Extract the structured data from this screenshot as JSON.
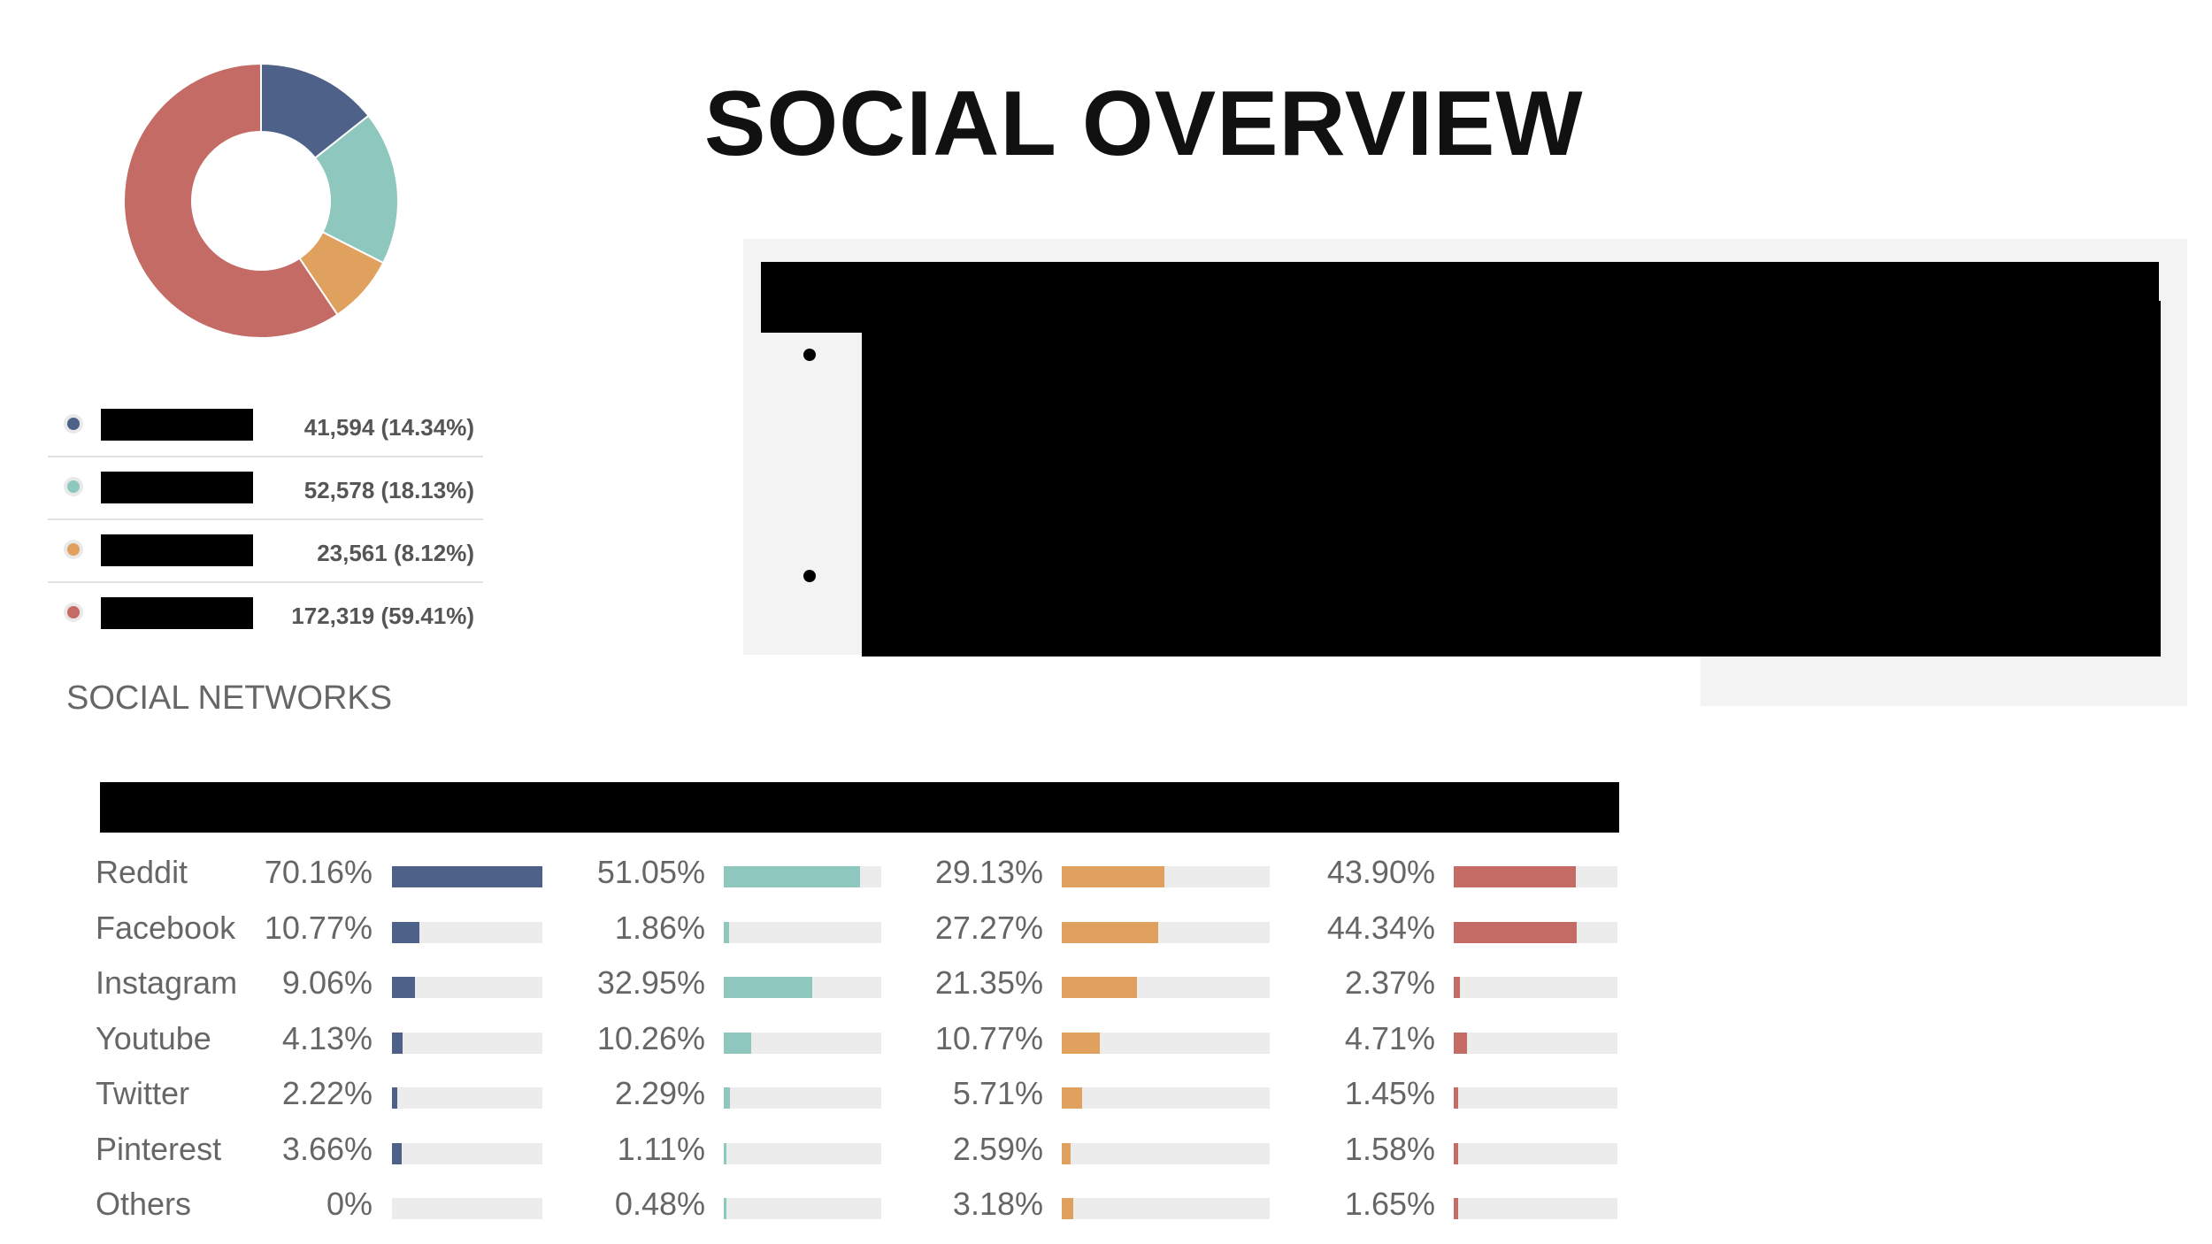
{
  "title": "SOCIAL OVERVIEW",
  "section_label": "SOCIAL NETWORKS",
  "colors": [
    "#4e6189",
    "#8ec7bd",
    "#e0a05e",
    "#c46b65"
  ],
  "legend": [
    {
      "value": "41,594 (14.34%)"
    },
    {
      "value": "52,578 (18.13%)"
    },
    {
      "value": "23,561 (8.12%)"
    },
    {
      "value": "172,319 (59.41%)"
    }
  ],
  "chart_data": [
    {
      "type": "pie",
      "values": [
        41594,
        52578,
        23561,
        172319
      ],
      "percentages": [
        14.34,
        18.13,
        8.12,
        59.41
      ],
      "colors": [
        "#4e6189",
        "#8ec7bd",
        "#e0a05e",
        "#c46b65"
      ],
      "donut": true
    },
    {
      "type": "bar",
      "orientation": "horizontal",
      "categories": [
        "Reddit",
        "Facebook",
        "Instagram",
        "Youtube",
        "Twitter",
        "Pinterest",
        "Others"
      ],
      "series": [
        {
          "values": [
            70.16,
            10.77,
            9.06,
            4.13,
            2.22,
            3.66,
            0
          ],
          "labels": [
            "70.16%",
            "10.77%",
            "9.06%",
            "4.13%",
            "2.22%",
            "3.66%",
            "0%"
          ],
          "color": "#4e6189"
        },
        {
          "values": [
            51.05,
            1.86,
            32.95,
            10.26,
            2.29,
            1.11,
            0.48
          ],
          "labels": [
            "51.05%",
            "1.86%",
            "32.95%",
            "10.26%",
            "2.29%",
            "1.11%",
            "0.48%"
          ],
          "color": "#8ec7bd"
        },
        {
          "values": [
            29.13,
            27.27,
            21.35,
            10.77,
            5.71,
            2.59,
            3.18
          ],
          "labels": [
            "29.13%",
            "27.27%",
            "21.35%",
            "10.77%",
            "5.71%",
            "2.59%",
            "3.18%"
          ],
          "color": "#e0a05e"
        },
        {
          "values": [
            43.9,
            44.34,
            2.37,
            4.71,
            1.45,
            1.58,
            1.65
          ],
          "labels": [
            "43.90%",
            "44.34%",
            "2.37%",
            "4.71%",
            "1.45%",
            "1.58%",
            "1.65%"
          ],
          "color": "#c46b65"
        }
      ],
      "xlim": [
        0,
        100
      ]
    }
  ]
}
